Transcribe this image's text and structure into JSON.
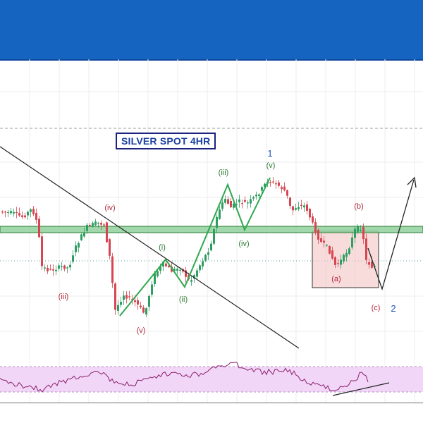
{
  "title": "SILVER SPOT 4HR",
  "colors": {
    "banner": "#1565c0",
    "bull_candle": "#2e9e62",
    "bear_candle": "#d64550",
    "wave_green": "#2fa84f",
    "support_zone": "#8fd19e",
    "correction_box": "#f4c4c4",
    "rsi_band": "#f1d6f7",
    "rsi_line": "#8b1f6b",
    "label_red": "#b2283a",
    "label_green": "#2e7d32",
    "label_blue": "#1e4fb5"
  },
  "labels": {
    "wave_iv_left": "(iv)",
    "wave_iii_left": "(iii)",
    "wave_v_low": "(v)",
    "wave_i": "(i)",
    "wave_ii": "(ii)",
    "wave_iii": "(iii)",
    "wave_iv": "(iv)",
    "wave_v": "(v)",
    "wave_1": "1",
    "wave_a": "(a)",
    "wave_b": "(b)",
    "wave_c": "(c)",
    "wave_2": "2"
  },
  "chart_data": {
    "type": "candlestick",
    "title": "SILVER SPOT 4HR",
    "annotations": [
      "(iv)",
      "(iii)",
      "(v)",
      "(i)",
      "(ii)",
      "(iii)",
      "(iv)",
      "(v)",
      "1",
      "(a)",
      "(b)",
      "(c)",
      "2"
    ],
    "indicator": "RSI",
    "grid": true
  }
}
